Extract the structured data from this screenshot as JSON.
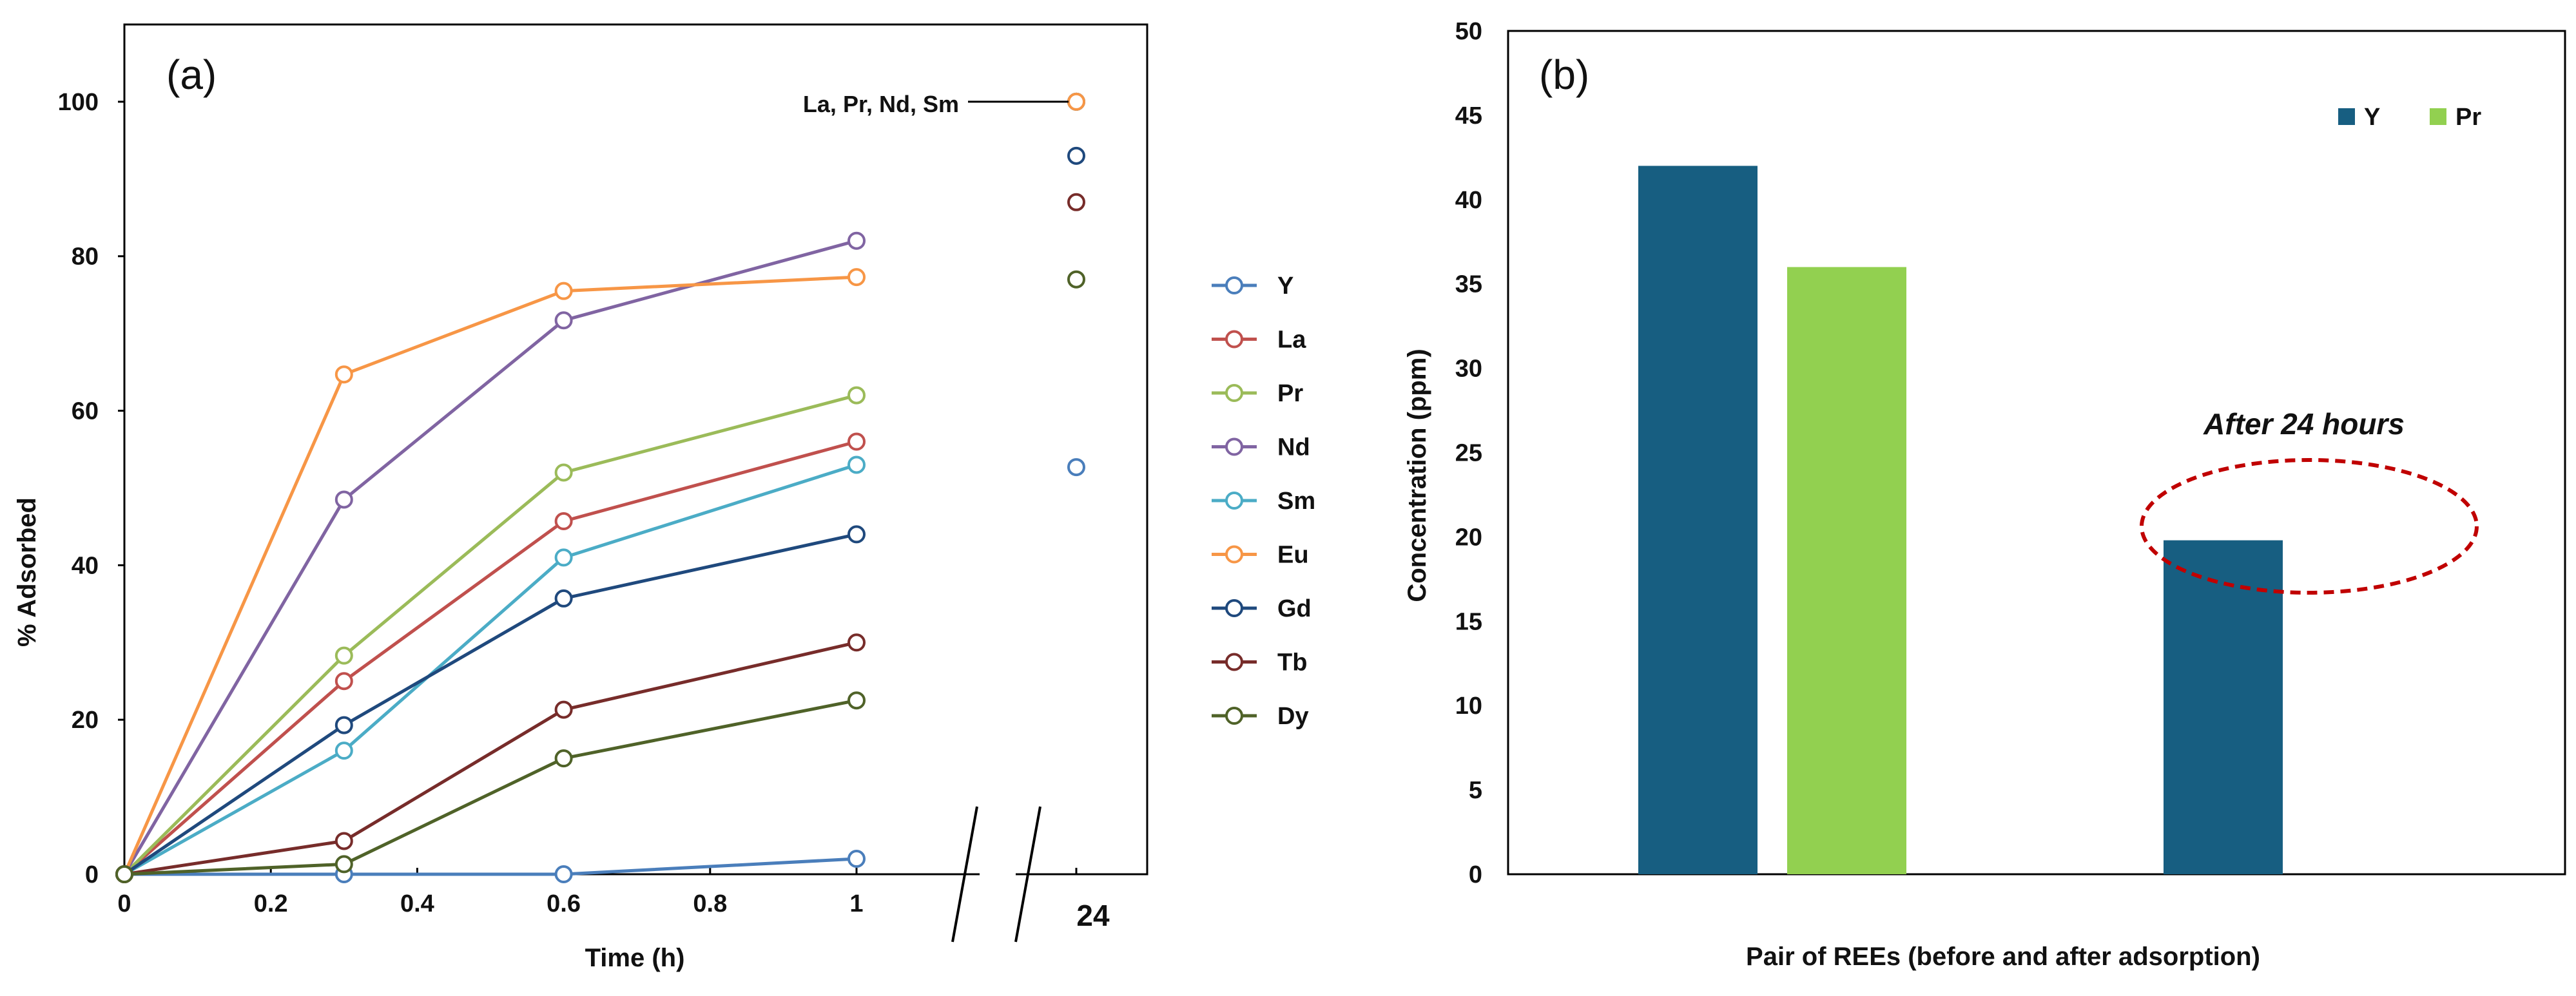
{
  "chart_data": [
    {
      "type": "line",
      "panel_label": "(a)",
      "xlabel": "Time (h)",
      "ylabel": "% Adsorbed",
      "ylim": [
        0,
        110
      ],
      "xlim_main": [
        0,
        1.2
      ],
      "x_ticks": [
        "0",
        "0.2",
        "0.4",
        "0.6",
        "0.8",
        "1"
      ],
      "y_ticks": [
        "0",
        "20",
        "40",
        "60",
        "80",
        "100"
      ],
      "axis_break_label": "24",
      "grid": false,
      "legend_position": "right",
      "annotation": "La, Pr, Nd, Sm",
      "annotation_value": 100,
      "x": [
        0,
        0.3,
        0.6,
        1
      ],
      "series": [
        {
          "name": "Y",
          "color": "#4A7EBB",
          "values": [
            0,
            0,
            0,
            2
          ],
          "value_24h": 52.7
        },
        {
          "name": "La",
          "color": "#C0504D",
          "values": [
            0,
            25,
            45.7,
            56
          ],
          "value_24h": 100
        },
        {
          "name": "Pr",
          "color": "#9BBB59",
          "values": [
            0,
            28.3,
            52,
            62
          ],
          "value_24h": 100
        },
        {
          "name": "Nd",
          "color": "#8064A2",
          "values": [
            0,
            48.5,
            71.7,
            82
          ],
          "value_24h": 100
        },
        {
          "name": "Sm",
          "color": "#4BACC6",
          "values": [
            0,
            16,
            41,
            53
          ],
          "value_24h": 100
        },
        {
          "name": "Eu",
          "color": "#F79646",
          "values": [
            0,
            64.7,
            75.5,
            77.3
          ],
          "value_24h": 100
        },
        {
          "name": "Gd",
          "color": "#1F497D",
          "values": [
            0,
            19.3,
            35.7,
            44
          ],
          "value_24h": 93
        },
        {
          "name": "Tb",
          "color": "#772C2A",
          "values": [
            0,
            4.3,
            21.3,
            30
          ],
          "value_24h": 87
        },
        {
          "name": "Dy",
          "color": "#4F6228",
          "values": [
            0,
            1.3,
            15,
            22.5
          ],
          "value_24h": 77
        }
      ]
    },
    {
      "type": "bar",
      "panel_label": "(b)",
      "xlabel": "Pair of REEs (before and after adsorption)",
      "ylabel": "Concentration (ppm)",
      "ylim": [
        0,
        50
      ],
      "y_ticks": [
        "0",
        "5",
        "10",
        "15",
        "20",
        "25",
        "30",
        "35",
        "40",
        "45",
        "50"
      ],
      "grid": false,
      "legend_position": "top-right",
      "annotation": "After 24 hours",
      "series": [
        {
          "name": "Y",
          "color": "#175E81",
          "values": [
            42,
            19.8
          ]
        },
        {
          "name": "Pr",
          "color": "#92D050",
          "values": [
            36
          ]
        }
      ]
    }
  ]
}
